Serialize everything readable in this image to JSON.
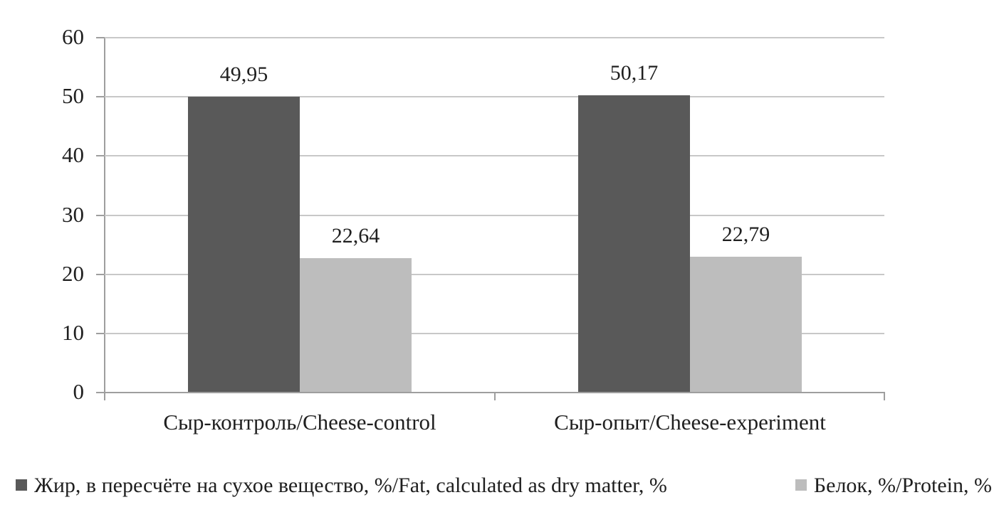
{
  "chart_data": {
    "type": "bar",
    "title": "",
    "xlabel": "",
    "ylabel": "",
    "categories": [
      "Сыр-контроль/Cheese-control",
      "Сыр-опыт/Cheese-experiment"
    ],
    "series": [
      {
        "name": "Жир, в пересчёте на сухое вещество, %/Fat, calculated as dry matter, %",
        "values": [
          49.95,
          50.17
        ],
        "value_labels": [
          "49,95",
          "50,17"
        ],
        "color": "#595959"
      },
      {
        "name": "Белок, %/Protein, %",
        "values": [
          22.64,
          22.79
        ],
        "value_labels": [
          "22,64",
          "22,79"
        ],
        "color": "#bdbdbd"
      }
    ],
    "ylim": [
      0,
      60
    ],
    "yticks": [
      0,
      10,
      20,
      30,
      40,
      50,
      60
    ],
    "grid": true,
    "legend_position": "bottom",
    "decimal_separator": ","
  },
  "colors": {
    "grid": "#c8c8c8",
    "axis": "#9e9e9e",
    "text": "#1f1f1f",
    "background": "#ffffff"
  }
}
